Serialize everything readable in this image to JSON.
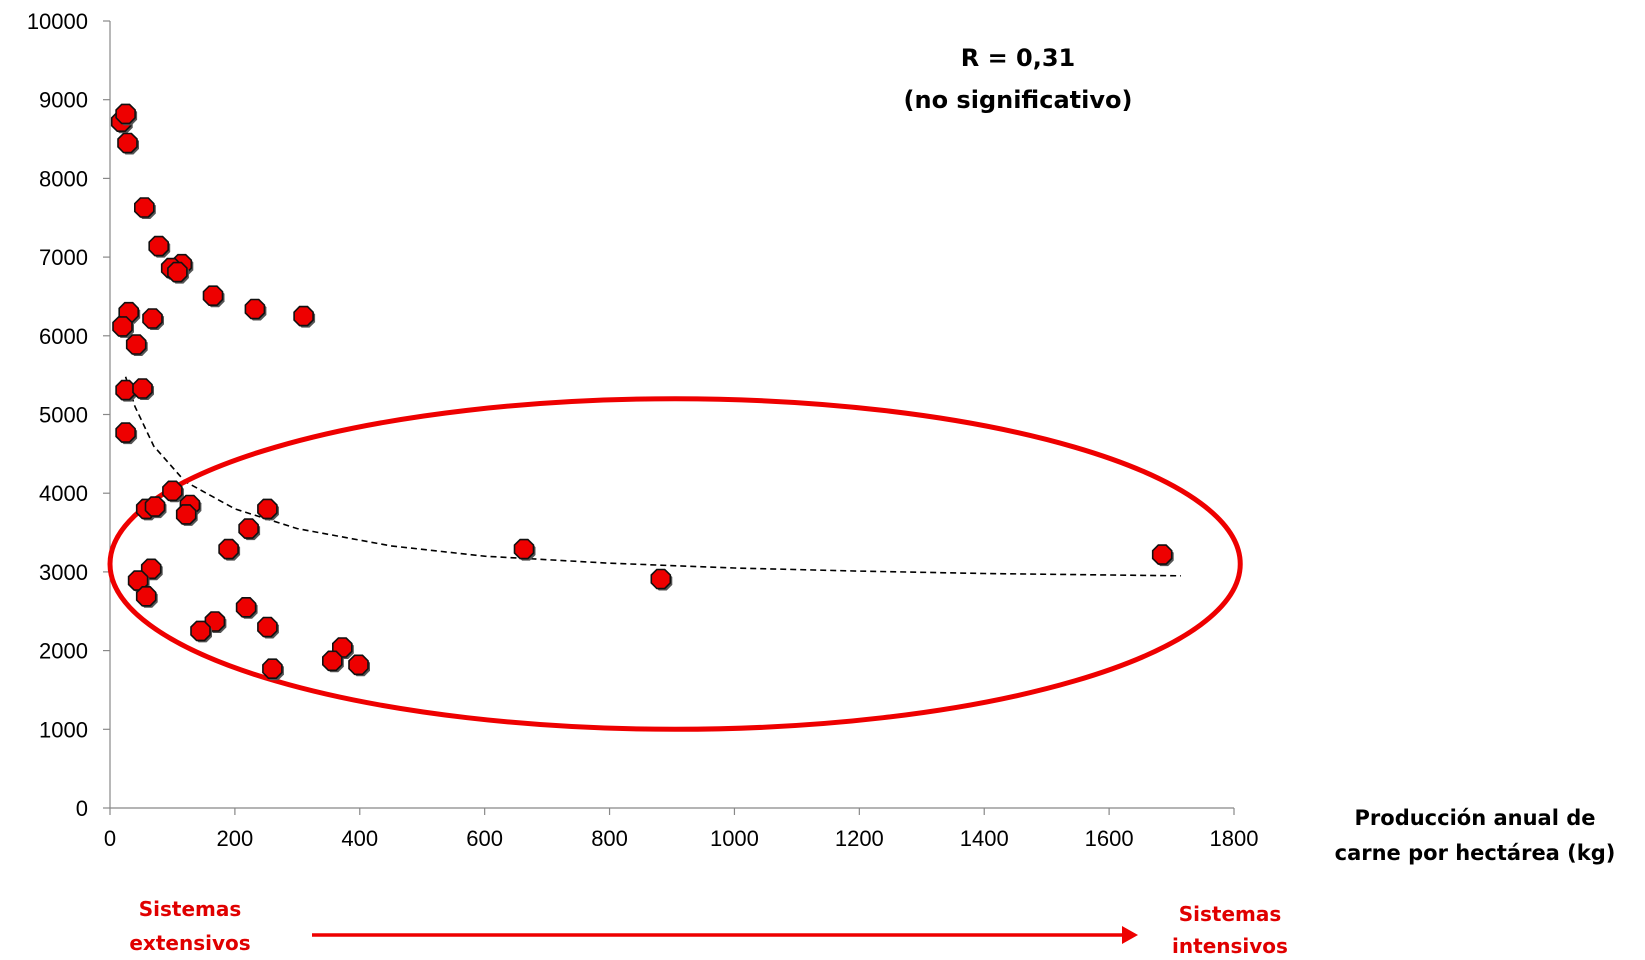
{
  "chart_data": {
    "type": "scatter",
    "title": "",
    "xlabel": [
      "Producción anual de",
      "carne por hectárea (kg)"
    ],
    "ylabel": "",
    "xlim": [
      0,
      1800
    ],
    "ylim": [
      0,
      10000
    ],
    "x_ticks": [
      0,
      200,
      400,
      600,
      800,
      1000,
      1200,
      1400,
      1600,
      1800
    ],
    "y_ticks": [
      0,
      1000,
      2000,
      3000,
      4000,
      5000,
      6000,
      7000,
      8000,
      9000,
      10000
    ],
    "grid": false,
    "annotation": [
      "R = 0,31",
      "(no significativo)"
    ],
    "marker_color": "#ee0000",
    "points": [
      {
        "x": 18,
        "y": 8720
      },
      {
        "x": 25,
        "y": 8820
      },
      {
        "x": 28,
        "y": 8450
      },
      {
        "x": 55,
        "y": 7630
      },
      {
        "x": 78,
        "y": 7140
      },
      {
        "x": 115,
        "y": 6910
      },
      {
        "x": 98,
        "y": 6860
      },
      {
        "x": 108,
        "y": 6810
      },
      {
        "x": 165,
        "y": 6510
      },
      {
        "x": 232,
        "y": 6340
      },
      {
        "x": 310,
        "y": 6250
      },
      {
        "x": 30,
        "y": 6300
      },
      {
        "x": 68,
        "y": 6220
      },
      {
        "x": 20,
        "y": 6120
      },
      {
        "x": 42,
        "y": 5890
      },
      {
        "x": 25,
        "y": 5310
      },
      {
        "x": 52,
        "y": 5330
      },
      {
        "x": 25,
        "y": 4770
      },
      {
        "x": 100,
        "y": 4030
      },
      {
        "x": 58,
        "y": 3800
      },
      {
        "x": 72,
        "y": 3830
      },
      {
        "x": 128,
        "y": 3850
      },
      {
        "x": 122,
        "y": 3730
      },
      {
        "x": 252,
        "y": 3800
      },
      {
        "x": 222,
        "y": 3550
      },
      {
        "x": 190,
        "y": 3290
      },
      {
        "x": 66,
        "y": 3040
      },
      {
        "x": 45,
        "y": 2890
      },
      {
        "x": 58,
        "y": 2690
      },
      {
        "x": 218,
        "y": 2550
      },
      {
        "x": 168,
        "y": 2370
      },
      {
        "x": 145,
        "y": 2250
      },
      {
        "x": 252,
        "y": 2300
      },
      {
        "x": 372,
        "y": 2040
      },
      {
        "x": 356,
        "y": 1870
      },
      {
        "x": 398,
        "y": 1820
      },
      {
        "x": 260,
        "y": 1770
      },
      {
        "x": 663,
        "y": 3290
      },
      {
        "x": 882,
        "y": 2910
      },
      {
        "x": 1685,
        "y": 3220
      }
    ],
    "trendline": {
      "style": "dashed",
      "points": [
        [
          25,
          5480
        ],
        [
          40,
          5100
        ],
        [
          70,
          4600
        ],
        [
          120,
          4150
        ],
        [
          200,
          3800
        ],
        [
          300,
          3550
        ],
        [
          450,
          3330
        ],
        [
          600,
          3200
        ],
        [
          800,
          3110
        ],
        [
          1000,
          3050
        ],
        [
          1200,
          3010
        ],
        [
          1400,
          2980
        ],
        [
          1600,
          2960
        ],
        [
          1715,
          2950
        ]
      ]
    },
    "highlight_ellipse": {
      "color": "#ee0000",
      "cx": 905,
      "cy": 3100,
      "rx": 905,
      "ry": 2100
    },
    "bottom_labels": {
      "left": [
        "Sistemas",
        "extensivos"
      ],
      "right": [
        "Sistemas",
        "intensivos"
      ],
      "arrow_color": "#ee0000"
    }
  }
}
